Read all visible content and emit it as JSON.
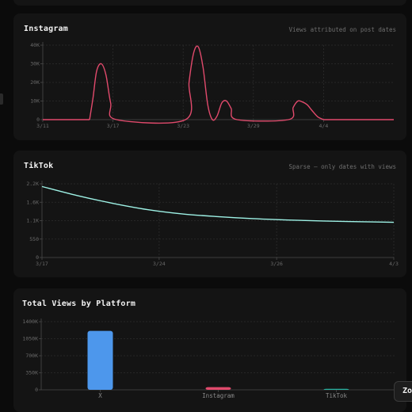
{
  "charts": {
    "instagram": {
      "title": "Instagram",
      "subtitle": "Views attributed on post dates",
      "color": "#e14a6c"
    },
    "tiktok": {
      "title": "TikTok",
      "subtitle": "Sparse — only dates with views",
      "color": "#9ef2e6"
    },
    "platforms": {
      "title": "Total Views by Platform"
    }
  },
  "zoom_button": {
    "label": "Zo"
  },
  "chart_data": [
    {
      "type": "area",
      "title": "Instagram",
      "x_tick_labels": [
        "3/11",
        "3/17",
        "3/23",
        "3/29",
        "4/4"
      ],
      "y_tick_labels": [
        "0",
        "10K",
        "20K",
        "30K",
        "40K"
      ],
      "ylim": [
        0,
        40000
      ],
      "x_days_range": [
        0,
        30
      ],
      "x_tick_days": [
        0,
        6,
        12,
        18,
        24
      ],
      "grid": true,
      "series": [
        {
          "x_days": [
            4.0,
            4.3,
            4.6,
            5.0,
            5.4,
            5.8,
            6.3,
            12.2,
            12.5,
            12.9,
            13.3,
            13.7,
            14.1,
            14.5,
            14.9,
            15.3,
            15.7,
            16.1,
            16.6,
            21.0,
            21.4,
            21.8,
            22.2,
            22.6,
            23.0,
            23.5,
            24.0
          ],
          "values": [
            0,
            12000,
            26000,
            30000,
            24000,
            9000,
            0,
            0,
            20000,
            36000,
            39000,
            28000,
            8000,
            0,
            2000,
            9000,
            10000,
            6000,
            0,
            0,
            6500,
            10000,
            9500,
            8000,
            5000,
            1500,
            0
          ]
        }
      ]
    },
    {
      "type": "line",
      "title": "TikTok",
      "x_tick_labels": [
        "3/17",
        "3/24",
        "3/26",
        "4/3"
      ],
      "y_tick_labels": [
        "0",
        "550",
        "1.1K",
        "1.6K",
        "2.2K"
      ],
      "ylim": [
        0,
        2200
      ],
      "grid": true,
      "series": [
        {
          "x_frac": [
            0.0,
            0.1,
            0.2,
            0.3,
            0.4,
            0.5,
            0.6,
            0.7,
            0.8,
            0.9,
            1.0
          ],
          "values": [
            2120,
            1850,
            1620,
            1430,
            1300,
            1220,
            1160,
            1120,
            1090,
            1070,
            1050
          ]
        }
      ]
    },
    {
      "type": "bar",
      "title": "Total Views by Platform",
      "categories": [
        "X",
        "Instagram",
        "TikTok"
      ],
      "values": [
        1210000,
        55000,
        4000
      ],
      "colors": [
        "#4d97ec",
        "#e14a6c",
        "#27b3a1"
      ],
      "y_tick_labels": [
        "0",
        "350K",
        "700K",
        "1050K",
        "1400K"
      ],
      "ylim": [
        0,
        1400000
      ],
      "grid": true
    }
  ]
}
